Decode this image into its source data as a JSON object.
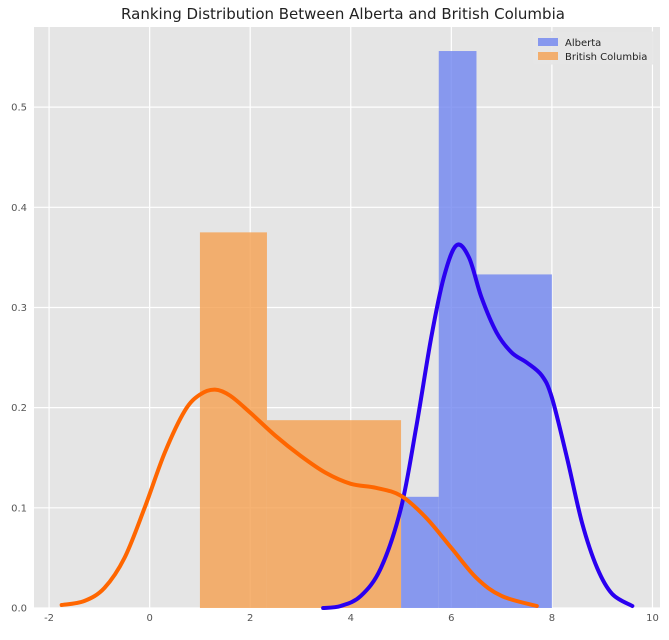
{
  "chart_data": {
    "type": "histogram+kde",
    "title": "Ranking Distribution Between Alberta and British Columbia",
    "xlabel": "",
    "ylabel": "",
    "xlim": [
      -2.3,
      10.15
    ],
    "ylim": [
      0,
      0.58
    ],
    "xticks": [
      -2,
      0,
      2,
      4,
      6,
      8,
      10
    ],
    "xtick_labels": [
      "-2",
      "0",
      "2",
      "4",
      "6",
      "8",
      "10"
    ],
    "yticks": [
      0.0,
      0.1,
      0.2,
      0.3,
      0.4,
      0.5
    ],
    "ytick_labels": [
      "0.0",
      "0.1",
      "0.2",
      "0.3",
      "0.4",
      "0.5"
    ],
    "grid": true,
    "legend_position": "top-right",
    "series": [
      {
        "name": "Alberta",
        "hist_color": "#6f85f0",
        "kde_color": "#2a00f0",
        "bins": [
          {
            "x0": 5.0,
            "x1": 5.75,
            "height": 0.111
          },
          {
            "x0": 5.75,
            "x1": 6.5,
            "height": 0.556
          },
          {
            "x0": 6.5,
            "x1": 8.0,
            "height": 0.333
          }
        ],
        "kde": [
          [
            3.45,
            0.0
          ],
          [
            3.8,
            0.002
          ],
          [
            4.2,
            0.012
          ],
          [
            4.6,
            0.04
          ],
          [
            5.0,
            0.1
          ],
          [
            5.3,
            0.18
          ],
          [
            5.6,
            0.27
          ],
          [
            5.85,
            0.33
          ],
          [
            6.1,
            0.362
          ],
          [
            6.35,
            0.35
          ],
          [
            6.6,
            0.31
          ],
          [
            6.9,
            0.275
          ],
          [
            7.2,
            0.255
          ],
          [
            7.5,
            0.245
          ],
          [
            7.8,
            0.232
          ],
          [
            8.0,
            0.21
          ],
          [
            8.3,
            0.15
          ],
          [
            8.6,
            0.085
          ],
          [
            8.9,
            0.04
          ],
          [
            9.2,
            0.014
          ],
          [
            9.6,
            0.002
          ]
        ]
      },
      {
        "name": "British Columbia",
        "hist_color": "#f5a050",
        "kde_color": "#ff6600",
        "bins": [
          {
            "x0": 1.0,
            "x1": 2.333,
            "height": 0.375
          },
          {
            "x0": 2.333,
            "x1": 5.0,
            "height": 0.1875
          }
        ],
        "kde": [
          [
            -1.75,
            0.003
          ],
          [
            -1.3,
            0.007
          ],
          [
            -0.9,
            0.02
          ],
          [
            -0.5,
            0.05
          ],
          [
            -0.1,
            0.1
          ],
          [
            0.3,
            0.155
          ],
          [
            0.7,
            0.197
          ],
          [
            1.0,
            0.213
          ],
          [
            1.3,
            0.218
          ],
          [
            1.6,
            0.212
          ],
          [
            2.0,
            0.195
          ],
          [
            2.5,
            0.172
          ],
          [
            3.0,
            0.152
          ],
          [
            3.5,
            0.135
          ],
          [
            4.0,
            0.124
          ],
          [
            4.5,
            0.12
          ],
          [
            5.0,
            0.112
          ],
          [
            5.5,
            0.09
          ],
          [
            6.0,
            0.06
          ],
          [
            6.5,
            0.03
          ],
          [
            7.0,
            0.012
          ],
          [
            7.7,
            0.002
          ]
        ]
      }
    ]
  }
}
